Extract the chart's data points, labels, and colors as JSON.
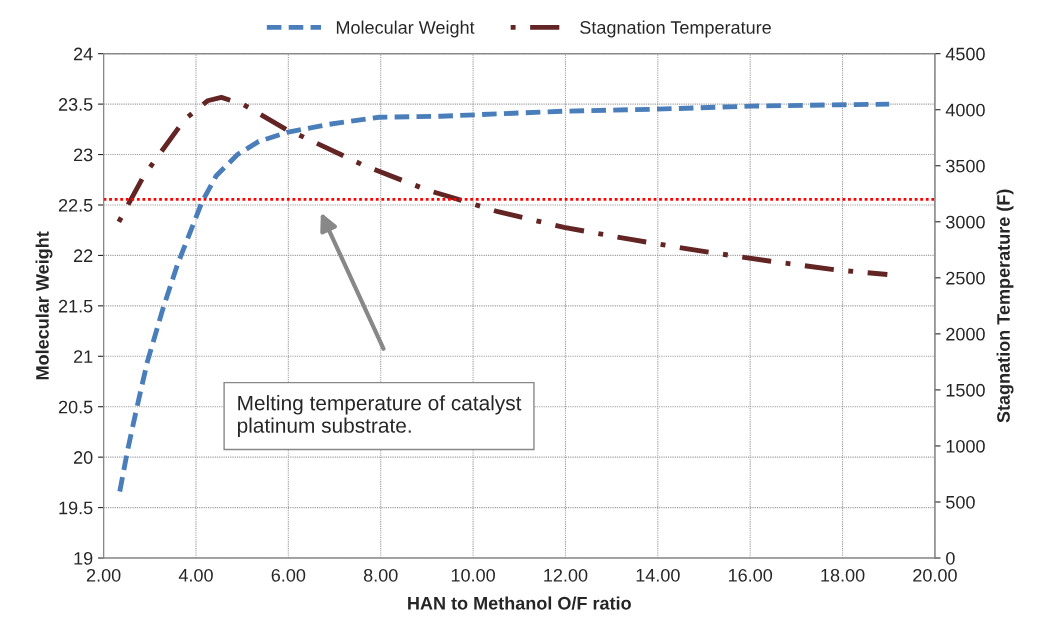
{
  "chart_data": {
    "type": "line",
    "xlabel": "HAN to Methanol O/F ratio",
    "ylabel": "Molecular Weight",
    "y2label": "Stagnation Temperature (F)",
    "series": [
      {
        "name": "Molecular Weight",
        "color": "#4a7ebb",
        "line_style": "dashed",
        "x": [
          2.35,
          2.52,
          2.72,
          2.95,
          3.29,
          3.6,
          3.9,
          4.13,
          4.44,
          4.9,
          5.36,
          5.97,
          6.89,
          7.96,
          9.3,
          11.97,
          13.99,
          16.0,
          19.01
        ],
        "values": [
          19.66,
          20.07,
          20.49,
          20.95,
          21.48,
          21.91,
          22.26,
          22.53,
          22.79,
          23.0,
          23.13,
          23.22,
          23.3,
          23.37,
          23.38,
          23.43,
          23.45,
          23.48,
          23.5
        ]
      },
      {
        "name": "Stagnation Temperature",
        "color": "#632523",
        "line_style": "dashdot",
        "axis": "y2",
        "x": [
          2.33,
          2.87,
          3.75,
          4.25,
          4.55,
          5.01,
          5.97,
          6.31,
          7.65,
          9.03,
          9.44,
          10.54,
          11.97,
          13.45,
          14.92,
          16.41,
          17.88,
          18.97
        ],
        "values": [
          3000,
          3410,
          3910,
          4080,
          4110,
          4050,
          3820,
          3760,
          3500,
          3280,
          3230,
          3090,
          2950,
          2840,
          2740,
          2650,
          2570,
          2530
        ]
      }
    ],
    "xlim": [
      2,
      20
    ],
    "xticks": [
      {
        "value": 2,
        "label": "2.00"
      },
      {
        "value": 4,
        "label": "4.00"
      },
      {
        "value": 6,
        "label": "6.00"
      },
      {
        "value": 8,
        "label": "8.00"
      },
      {
        "value": 10,
        "label": "10.00"
      },
      {
        "value": 12,
        "label": "12.00"
      },
      {
        "value": 14,
        "label": "14.00"
      },
      {
        "value": 16,
        "label": "16.00"
      },
      {
        "value": 18,
        "label": "18.00"
      },
      {
        "value": 20,
        "label": "20.00"
      }
    ],
    "ylim": [
      19,
      24
    ],
    "yticks": [
      19,
      19.5,
      20,
      20.5,
      21,
      21.5,
      22,
      22.5,
      23,
      23.5,
      24
    ],
    "y2lim": [
      0,
      4500
    ],
    "y2ticks": [
      0,
      500,
      1000,
      1500,
      2000,
      2500,
      3000,
      3500,
      4000,
      4500
    ],
    "ref_lines": [
      {
        "axis": "y2",
        "value": 3200,
        "color": "#ff0000",
        "line_style": "dotted"
      }
    ],
    "annotations": [
      "Melting temperature of catalyst\nplatinum substrate."
    ],
    "grid": true,
    "legend": "top"
  }
}
